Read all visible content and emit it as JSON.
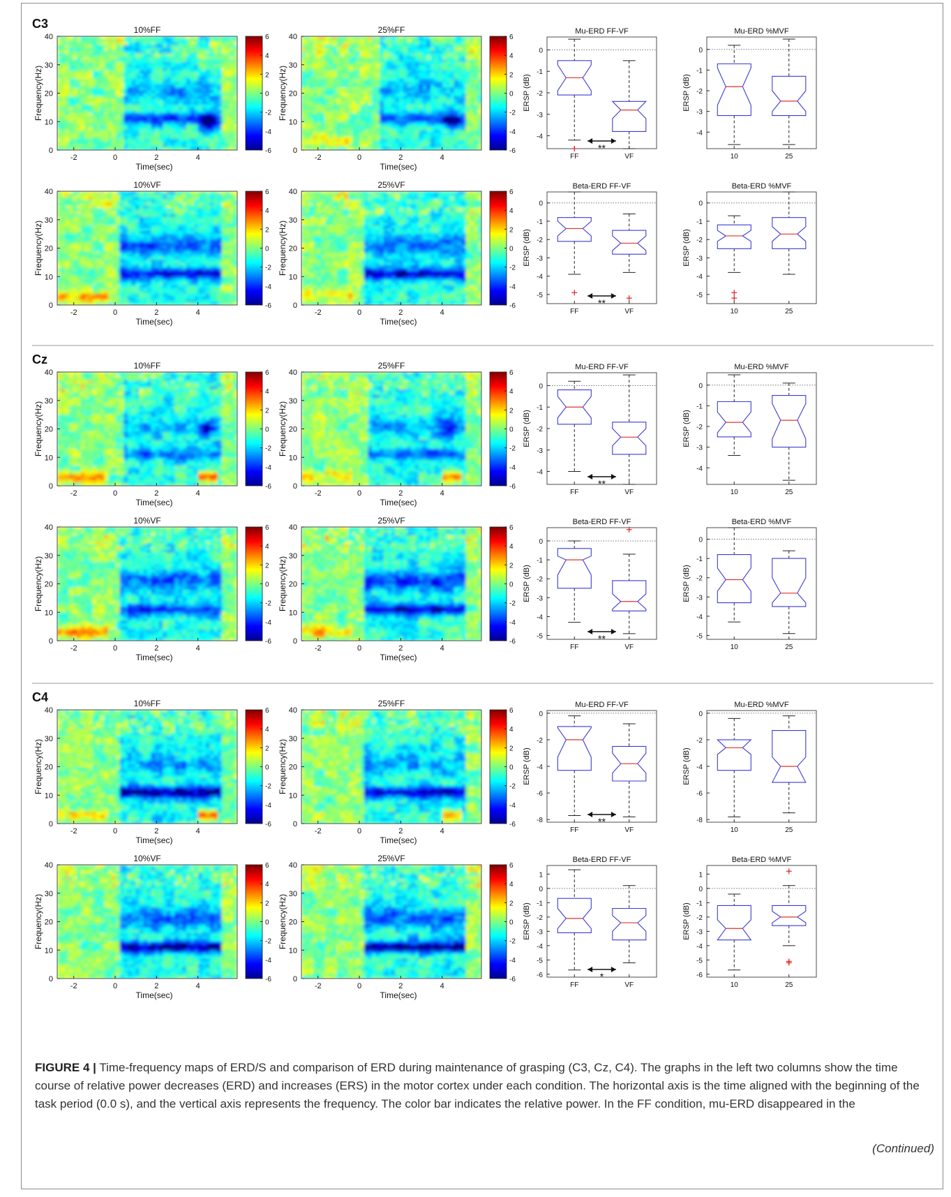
{
  "colors": {
    "box": "#3b3bd6",
    "median": "#e0332b",
    "outlier": "#e02020",
    "separator": "#9a9a9a"
  },
  "sections": [
    {
      "channel": "C3",
      "maps": [
        {
          "title": "10%FF",
          "band": "mu",
          "mu": 0.55,
          "beta": 0.45,
          "onset": 0.4,
          "ers_start": 0,
          "ers_end": 0.25,
          "blobs": [
            {
              "t": 4.5,
              "f": 10,
              "a": 0.9
            }
          ]
        },
        {
          "title": "25%FF",
          "band": "mu",
          "mu": 0.6,
          "beta": 0.35,
          "onset": 1.0,
          "ers_start": 0.4,
          "ers_end": 0.0,
          "blobs": [
            {
              "t": 4.5,
              "f": 10,
              "a": 0.6
            }
          ]
        },
        {
          "title": "10%VF",
          "band": "both",
          "mu": 0.7,
          "beta": 0.55,
          "onset": 0.3,
          "ers_start": 0.6,
          "ers_end": 0,
          "blobs": []
        },
        {
          "title": "25%VF",
          "band": "both",
          "mu": 0.85,
          "beta": 0.5,
          "onset": 0.3,
          "ers_start": 0.4,
          "ers_end": 0.3,
          "blobs": []
        }
      ],
      "boxplots": [
        {
          "title": "Mu-ERD FF-VF",
          "categories": [
            "FF",
            "VF"
          ],
          "ylim": [
            -4.6,
            0.6
          ],
          "yticks": [
            0,
            -1,
            -2,
            -3,
            -4
          ],
          "boxes": [
            {
              "whislo": -4.2,
              "q1": -2.1,
              "med": -1.3,
              "q3": -0.5,
              "whishi": 0.5,
              "notch_lo": -1.9,
              "notch_hi": -0.7,
              "fliers": [
                -4.6
              ]
            },
            {
              "whislo": -4.6,
              "q1": -3.8,
              "med": -2.8,
              "q3": -2.4,
              "whishi": -0.5,
              "notch_lo": -3.2,
              "notch_hi": -2.4,
              "fliers": []
            }
          ],
          "sig": "**"
        },
        {
          "title": "Mu-ERD %MVF",
          "categories": [
            "10",
            "25"
          ],
          "ylim": [
            -4.8,
            0.6
          ],
          "yticks": [
            0,
            -1,
            -2,
            -3,
            -4
          ],
          "boxes": [
            {
              "whislo": -4.6,
              "q1": -3.2,
              "med": -1.8,
              "q3": -0.7,
              "whishi": 0.2,
              "notch_lo": -2.7,
              "notch_hi": -0.9,
              "fliers": []
            },
            {
              "whislo": -4.6,
              "q1": -3.2,
              "med": -2.5,
              "q3": -1.3,
              "whishi": 0.5,
              "notch_lo": -3.0,
              "notch_hi": -2.0,
              "fliers": []
            }
          ],
          "sig": ""
        },
        {
          "title": "Beta-ERD FF-VF",
          "categories": [
            "FF",
            "VF"
          ],
          "ylim": [
            -5.5,
            0.6
          ],
          "yticks": [
            0,
            -1,
            -2,
            -3,
            -4,
            -5
          ],
          "boxes": [
            {
              "whislo": -3.9,
              "q1": -2.1,
              "med": -1.4,
              "q3": -0.8,
              "whishi": 0.6,
              "notch_lo": -1.8,
              "notch_hi": -1.0,
              "fliers": [
                -4.9
              ]
            },
            {
              "whislo": -3.8,
              "q1": -2.8,
              "med": -2.2,
              "q3": -1.5,
              "whishi": -0.6,
              "notch_lo": -2.6,
              "notch_hi": -1.8,
              "fliers": [
                -5.2
              ]
            }
          ],
          "sig": "**"
        },
        {
          "title": "Beta-ERD %MVF",
          "categories": [
            "10",
            "25"
          ],
          "ylim": [
            -5.5,
            0.6
          ],
          "yticks": [
            0,
            -1,
            -2,
            -3,
            -4,
            -5
          ],
          "boxes": [
            {
              "whislo": -3.8,
              "q1": -2.5,
              "med": -1.8,
              "q3": -1.2,
              "whishi": -0.7,
              "notch_lo": -2.1,
              "notch_hi": -1.5,
              "fliers": [
                -4.9,
                -5.2
              ]
            },
            {
              "whislo": -3.9,
              "q1": -2.5,
              "med": -1.7,
              "q3": -0.8,
              "whishi": 0.6,
              "notch_lo": -2.1,
              "notch_hi": -1.3,
              "fliers": []
            }
          ],
          "sig": ""
        }
      ]
    },
    {
      "channel": "Cz",
      "maps": [
        {
          "title": "10%FF",
          "band": "mu",
          "mu": 0.45,
          "beta": 0.4,
          "onset": 0.4,
          "ers_start": 0.6,
          "ers_end": 1.0,
          "blobs": [
            {
              "t": 4.5,
              "f": 20,
              "a": 0.5
            }
          ]
        },
        {
          "title": "25%FF",
          "band": "mu",
          "mu": 0.45,
          "beta": 0.4,
          "onset": 0.4,
          "ers_start": 0.5,
          "ers_end": 0.9,
          "blobs": [
            {
              "t": 4.3,
              "f": 20,
              "a": 0.6
            }
          ]
        },
        {
          "title": "10%VF",
          "band": "both",
          "mu": 0.6,
          "beta": 0.6,
          "onset": 0.3,
          "ers_start": 0.7,
          "ers_end": 0,
          "blobs": []
        },
        {
          "title": "25%VF",
          "band": "both",
          "mu": 0.8,
          "beta": 0.75,
          "onset": 0.3,
          "ers_start": 0.6,
          "ers_end": 0.2,
          "blobs": []
        }
      ],
      "boxplots": [
        {
          "title": "Mu-ERD FF-VF",
          "categories": [
            "FF",
            "VF"
          ],
          "ylim": [
            -4.6,
            0.6
          ],
          "yticks": [
            0,
            -1,
            -2,
            -3,
            -4
          ],
          "boxes": [
            {
              "whislo": -4.0,
              "q1": -1.8,
              "med": -1.0,
              "q3": -0.2,
              "whishi": 0.2,
              "notch_lo": -1.5,
              "notch_hi": -0.5,
              "fliers": []
            },
            {
              "whislo": -4.6,
              "q1": -3.2,
              "med": -2.4,
              "q3": -1.7,
              "whishi": 0.5,
              "notch_lo": -2.8,
              "notch_hi": -2.0,
              "fliers": []
            }
          ],
          "sig": "**"
        },
        {
          "title": "Mu-ERD %MVF",
          "categories": [
            "10",
            "25"
          ],
          "ylim": [
            -4.8,
            0.6
          ],
          "yticks": [
            0,
            -1,
            -2,
            -3,
            -4
          ],
          "boxes": [
            {
              "whislo": -3.4,
              "q1": -2.5,
              "med": -1.8,
              "q3": -0.8,
              "whishi": 0.5,
              "notch_lo": -2.3,
              "notch_hi": -1.3,
              "fliers": []
            },
            {
              "whislo": -4.6,
              "q1": -3.0,
              "med": -1.7,
              "q3": -0.5,
              "whishi": 0.1,
              "notch_lo": -2.6,
              "notch_hi": -0.9,
              "fliers": []
            }
          ],
          "sig": ""
        },
        {
          "title": "Beta-ERD FF-VF",
          "categories": [
            "FF",
            "VF"
          ],
          "ylim": [
            -5.2,
            0.7
          ],
          "yticks": [
            0,
            -1,
            -2,
            -3,
            -4,
            -5
          ],
          "boxes": [
            {
              "whislo": -4.3,
              "q1": -2.5,
              "med": -1.0,
              "q3": -0.4,
              "whishi": 0.0,
              "notch_lo": -1.8,
              "notch_hi": -0.8,
              "fliers": []
            },
            {
              "whislo": -4.9,
              "q1": -3.7,
              "med": -3.2,
              "q3": -2.1,
              "whishi": -0.7,
              "notch_lo": -3.6,
              "notch_hi": -2.8,
              "fliers": [
                0.6
              ]
            }
          ],
          "sig": "**"
        },
        {
          "title": "Beta-ERD %MVF",
          "categories": [
            "10",
            "25"
          ],
          "ylim": [
            -5.2,
            0.6
          ],
          "yticks": [
            0,
            -1,
            -2,
            -3,
            -4,
            -5
          ],
          "boxes": [
            {
              "whislo": -4.3,
              "q1": -3.3,
              "med": -2.1,
              "q3": -0.8,
              "whishi": 0.6,
              "notch_lo": -2.7,
              "notch_hi": -1.5,
              "fliers": []
            },
            {
              "whislo": -4.9,
              "q1": -3.5,
              "med": -2.8,
              "q3": -1.0,
              "whishi": -0.6,
              "notch_lo": -3.3,
              "notch_hi": -2.0,
              "fliers": []
            }
          ],
          "sig": ""
        }
      ]
    },
    {
      "channel": "C4",
      "maps": [
        {
          "title": "10%FF",
          "band": "mu",
          "mu": 0.95,
          "beta": 0.5,
          "onset": 0.3,
          "ers_start": 0.4,
          "ers_end": 0.9,
          "blobs": []
        },
        {
          "title": "25%FF",
          "band": "mu",
          "mu": 0.8,
          "beta": 0.45,
          "onset": 0.3,
          "ers_start": 0.2,
          "ers_end": 0.8,
          "blobs": []
        },
        {
          "title": "10%VF",
          "band": "both",
          "mu": 0.9,
          "beta": 0.55,
          "onset": 0.3,
          "ers_start": 0.1,
          "ers_end": 0,
          "blobs": []
        },
        {
          "title": "25%VF",
          "band": "both",
          "mu": 1.0,
          "beta": 0.6,
          "onset": 0.3,
          "ers_start": 0.1,
          "ers_end": 0,
          "blobs": []
        }
      ],
      "boxplots": [
        {
          "title": "Mu-ERD FF-VF",
          "categories": [
            "FF",
            "VF"
          ],
          "ylim": [
            -8.2,
            0.2
          ],
          "yticks": [
            0,
            -2,
            -4,
            -6,
            -8
          ],
          "boxes": [
            {
              "whislo": -7.7,
              "q1": -4.3,
              "med": -2.0,
              "q3": -1.0,
              "whishi": -0.2,
              "notch_lo": -3.3,
              "notch_hi": -1.1,
              "fliers": []
            },
            {
              "whislo": -7.8,
              "q1": -5.1,
              "med": -3.8,
              "q3": -2.5,
              "whishi": -0.8,
              "notch_lo": -4.5,
              "notch_hi": -3.0,
              "fliers": []
            }
          ],
          "sig": "**"
        },
        {
          "title": "Mu-ERD %MVF",
          "categories": [
            "10",
            "25"
          ],
          "ylim": [
            -8.2,
            0.2
          ],
          "yticks": [
            0,
            -2,
            -4,
            -6,
            -8
          ],
          "boxes": [
            {
              "whislo": -7.8,
              "q1": -4.3,
              "med": -2.6,
              "q3": -2.0,
              "whishi": -0.4,
              "notch_lo": -3.1,
              "notch_hi": -2.0,
              "fliers": []
            },
            {
              "whislo": -7.5,
              "q1": -5.2,
              "med": -4.0,
              "q3": -1.3,
              "whishi": -0.2,
              "notch_lo": -5.2,
              "notch_hi": -3.3,
              "fliers": []
            }
          ],
          "sig": ""
        },
        {
          "title": "Beta-ERD FF-VF",
          "categories": [
            "FF",
            "VF"
          ],
          "ylim": [
            -6.2,
            1.6
          ],
          "yticks": [
            1,
            0,
            -1,
            -2,
            -3,
            -4,
            -5,
            -6
          ],
          "boxes": [
            {
              "whislo": -5.7,
              "q1": -3.1,
              "med": -2.1,
              "q3": -0.7,
              "whishi": 1.3,
              "notch_lo": -2.8,
              "notch_hi": -1.4,
              "fliers": []
            },
            {
              "whislo": -5.2,
              "q1": -3.6,
              "med": -2.4,
              "q3": -1.4,
              "whishi": 0.2,
              "notch_lo": -3.0,
              "notch_hi": -1.9,
              "fliers": []
            }
          ],
          "sig": "*"
        },
        {
          "title": "Beta-ERD %MVF",
          "categories": [
            "10",
            "25"
          ],
          "ylim": [
            -6.2,
            1.6
          ],
          "yticks": [
            1,
            0,
            -1,
            -2,
            -3,
            -4,
            -5,
            -6
          ],
          "boxes": [
            {
              "whislo": -5.7,
              "q1": -3.6,
              "med": -2.8,
              "q3": -1.2,
              "whishi": -0.4,
              "notch_lo": -3.6,
              "notch_hi": -2.2,
              "fliers": []
            },
            {
              "whislo": -4.0,
              "q1": -2.6,
              "med": -2.0,
              "q3": -1.2,
              "whishi": 0.2,
              "notch_lo": -2.4,
              "notch_hi": -1.6,
              "fliers": [
                1.2,
                -5.1,
                -5.2
              ]
            }
          ],
          "sig": ""
        }
      ]
    }
  ],
  "heatmap_axes": {
    "xlabel": "Time(sec)",
    "ylabel": "Frequency(Hz)",
    "xticks": [
      -2,
      0,
      2,
      4
    ],
    "yticks": [
      0,
      10,
      20,
      30,
      40
    ],
    "xlim": [
      -2.8,
      5.9
    ],
    "ylim": [
      0,
      40
    ]
  },
  "colorbar": {
    "ticks": [
      6,
      4,
      2,
      0,
      -2,
      -4,
      -6
    ],
    "range": [
      -6,
      6
    ]
  },
  "boxplot_axes": {
    "ylabel": "ERSP (dB)"
  },
  "caption": {
    "label": "FIGURE 4 |",
    "text": "Time-frequency maps of ERD/S and comparison of ERD during maintenance of grasping (C3, Cz, C4). The graphs in the left two columns show the time course of relative power decreases (ERD) and increases (ERS) in the motor cortex under each condition. The horizontal axis is the time aligned with the beginning of the task period (0.0 s), and the vertical axis represents the frequency. The color bar indicates the relative power. In the FF condition, mu-ERD disappeared in the",
    "continued": "(Continued)"
  }
}
